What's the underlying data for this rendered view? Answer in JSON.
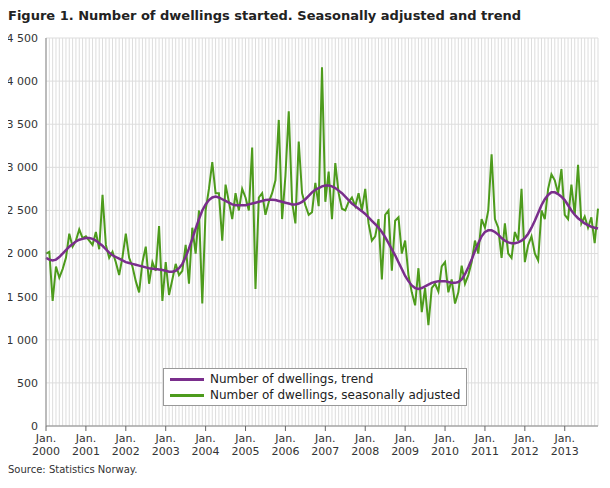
{
  "chart_data": {
    "type": "line",
    "title": "Figure 1. Number of dwellings started. Seasonally adjusted and trend",
    "source": "Source: Statistics Norway.",
    "categories": [
      "Jan. 2000",
      null,
      null,
      null,
      null,
      null,
      null,
      null,
      null,
      null,
      null,
      null,
      "Jan. 2001",
      null,
      null,
      null,
      null,
      null,
      null,
      null,
      null,
      null,
      null,
      null,
      "Jan. 2002",
      null,
      null,
      null,
      null,
      null,
      null,
      null,
      null,
      null,
      null,
      null,
      "Jan. 2003",
      null,
      null,
      null,
      null,
      null,
      null,
      null,
      null,
      null,
      null,
      null,
      "Jan. 2004",
      null,
      null,
      null,
      null,
      null,
      null,
      null,
      null,
      null,
      null,
      null,
      "Jan. 2005",
      null,
      null,
      null,
      null,
      null,
      null,
      null,
      null,
      null,
      null,
      null,
      "Jan. 2006",
      null,
      null,
      null,
      null,
      null,
      null,
      null,
      null,
      null,
      null,
      null,
      "Jan. 2007",
      null,
      null,
      null,
      null,
      null,
      null,
      null,
      null,
      null,
      null,
      null,
      "Jan. 2008",
      null,
      null,
      null,
      null,
      null,
      null,
      null,
      null,
      null,
      null,
      null,
      "Jan. 2009",
      null,
      null,
      null,
      null,
      null,
      null,
      null,
      null,
      null,
      null,
      null,
      "Jan. 2010",
      null,
      null,
      null,
      null,
      null,
      null,
      null,
      null,
      null,
      null,
      null,
      "Jan. 2011",
      null,
      null,
      null,
      null,
      null,
      null,
      null,
      null,
      null,
      null,
      null,
      "Jan. 2012",
      null,
      null,
      null,
      null,
      null,
      null,
      null,
      null,
      null,
      null,
      null,
      "Jan. 2013",
      null,
      null,
      null,
      null,
      null,
      null,
      null,
      null,
      null,
      null
    ],
    "series": [
      {
        "name": "Number of dwellings, trend",
        "color": "#7a2e8c",
        "values": [
          1950,
          1930,
          1920,
          1930,
          1960,
          2000,
          2040,
          2080,
          2110,
          2140,
          2160,
          2170,
          2180,
          2180,
          2170,
          2150,
          2120,
          2090,
          2050,
          2010,
          1980,
          1960,
          1940,
          1920,
          1900,
          1890,
          1880,
          1870,
          1860,
          1850,
          1840,
          1830,
          1825,
          1820,
          1815,
          1810,
          1800,
          1790,
          1790,
          1800,
          1830,
          1880,
          1960,
          2060,
          2170,
          2290,
          2400,
          2500,
          2570,
          2620,
          2650,
          2660,
          2650,
          2630,
          2610,
          2590,
          2570,
          2560,
          2560,
          2560,
          2560,
          2570,
          2580,
          2590,
          2600,
          2610,
          2620,
          2625,
          2625,
          2620,
          2610,
          2600,
          2590,
          2580,
          2570,
          2570,
          2580,
          2600,
          2630,
          2670,
          2710,
          2740,
          2760,
          2780,
          2790,
          2790,
          2780,
          2760,
          2730,
          2700,
          2660,
          2620,
          2580,
          2550,
          2520,
          2490,
          2460,
          2420,
          2380,
          2340,
          2300,
          2250,
          2190,
          2120,
          2050,
          1980,
          1900,
          1820,
          1740,
          1680,
          1630,
          1600,
          1590,
          1600,
          1620,
          1640,
          1660,
          1670,
          1680,
          1680,
          1680,
          1670,
          1660,
          1660,
          1670,
          1700,
          1760,
          1840,
          1930,
          2030,
          2120,
          2200,
          2250,
          2270,
          2270,
          2250,
          2220,
          2180,
          2150,
          2130,
          2120,
          2120,
          2130,
          2150,
          2180,
          2230,
          2300,
          2380,
          2470,
          2560,
          2630,
          2680,
          2710,
          2710,
          2690,
          2660,
          2620,
          2560,
          2500,
          2450,
          2410,
          2380,
          2350,
          2330,
          2310,
          2300,
          2290
        ]
      },
      {
        "name": "Number of dwellings, seasonally adjusted",
        "color": "#4d9b1c",
        "values": [
          2000,
          2020,
          1450,
          1850,
          1720,
          1820,
          1950,
          2230,
          2080,
          2150,
          2280,
          2180,
          2200,
          2150,
          2100,
          2250,
          2050,
          2680,
          2100,
          1950,
          2020,
          1900,
          1750,
          1960,
          2230,
          1950,
          1850,
          1680,
          1550,
          1900,
          2080,
          1650,
          1900,
          1800,
          2320,
          1450,
          1900,
          1520,
          1700,
          1880,
          1750,
          1800,
          2100,
          1650,
          2300,
          2000,
          2500,
          1420,
          2500,
          2750,
          3060,
          2700,
          2700,
          2150,
          2800,
          2600,
          2400,
          2700,
          2500,
          2750,
          2650,
          2500,
          3230,
          1590,
          2650,
          2700,
          2450,
          2600,
          2700,
          2850,
          3550,
          2400,
          2900,
          3650,
          2600,
          2350,
          3300,
          2700,
          2560,
          2450,
          2480,
          2820,
          2550,
          4160,
          2600,
          2950,
          2400,
          3050,
          2700,
          2520,
          2500,
          2600,
          2650,
          2550,
          2700,
          2500,
          2750,
          2350,
          2150,
          2200,
          2400,
          1700,
          2450,
          2500,
          1800,
          2380,
          2420,
          2000,
          2150,
          1750,
          1550,
          1400,
          1830,
          1320,
          1600,
          1170,
          1600,
          1650,
          1560,
          1850,
          1900,
          1550,
          1700,
          1420,
          1550,
          1860,
          1650,
          1750,
          1900,
          2150,
          2000,
          2400,
          2300,
          2500,
          3150,
          2400,
          2300,
          1950,
          2350,
          2000,
          1950,
          2250,
          2150,
          2750,
          1900,
          2100,
          2200,
          2000,
          1920,
          2500,
          2400,
          2750,
          2920,
          2850,
          2700,
          2980,
          2450,
          2400,
          2800,
          2450,
          3030,
          2350,
          2430,
          2300,
          2420,
          2120,
          2520
        ]
      }
    ],
    "ylim": [
      0,
      4500
    ],
    "yticks": [
      0,
      500,
      {
        "value": 1000,
        "label": "1 000"
      },
      {
        "value": 1500,
        "label": "1 500"
      },
      {
        "value": 2000,
        "label": "2 000"
      },
      {
        "value": 2500,
        "label": "2 500"
      },
      {
        "value": 3000,
        "label": "3 000"
      },
      {
        "value": 3500,
        "label": "3 500"
      },
      {
        "value": 4000,
        "label": "4 000"
      },
      {
        "value": 4500,
        "label": "4 500"
      }
    ],
    "grid": true,
    "legend": "bottom"
  }
}
